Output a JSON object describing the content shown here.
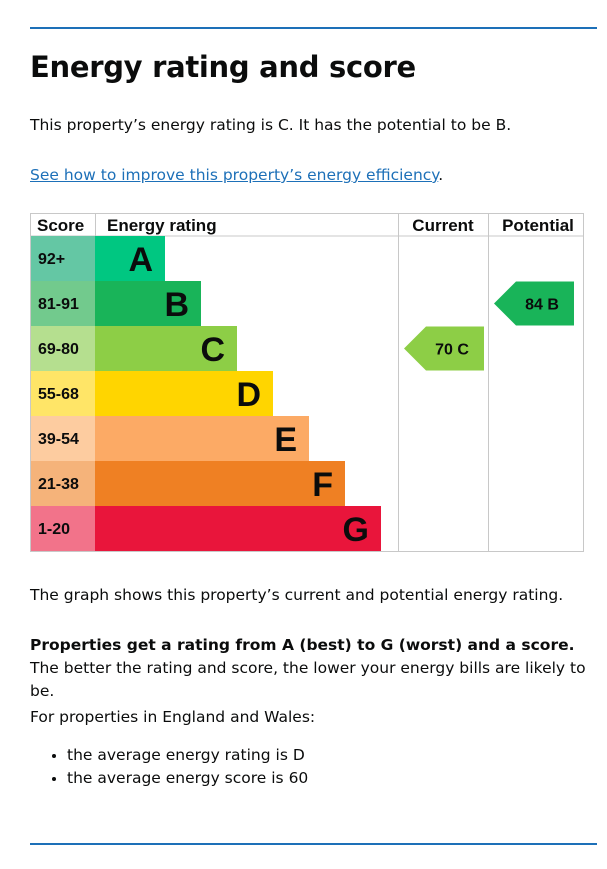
{
  "title": "Energy rating and score",
  "summary": "This property’s energy rating is C. It has the potential to be B.",
  "link": {
    "text": "See how to improve this property’s energy efficiency",
    "suffix": "."
  },
  "chart_data": {
    "type": "bar",
    "headers": {
      "score": "Score",
      "rating": "Energy rating",
      "current": "Current",
      "potential": "Potential"
    },
    "bands": [
      {
        "letter": "A",
        "range": "92+",
        "color": "#00c781",
        "score_color": "#64c7a4"
      },
      {
        "letter": "B",
        "range": "81-91",
        "color": "#19b459",
        "score_color": "#72ca8d"
      },
      {
        "letter": "C",
        "range": "69-80",
        "color": "#8dce46",
        "score_color": "#b5df8f"
      },
      {
        "letter": "D",
        "range": "55-68",
        "color": "#ffd500",
        "score_color": "#ffe567"
      },
      {
        "letter": "E",
        "range": "39-54",
        "color": "#fcaa65",
        "score_color": "#fdcca0"
      },
      {
        "letter": "F",
        "range": "21-38",
        "color": "#ef8023",
        "score_color": "#f5b37a"
      },
      {
        "letter": "G",
        "range": "1-20",
        "color": "#e9153b",
        "score_color": "#f2738a"
      }
    ],
    "current": {
      "score": 70,
      "letter": "C",
      "label": "70  C"
    },
    "potential": {
      "score": 84,
      "letter": "B",
      "label": "84  B"
    }
  },
  "caption": "The graph shows this property’s current and potential energy rating.",
  "explain_bold": "Properties get a rating from A (best) to G (worst) and a score.",
  "explain_rest": " The better the rating and score, the lower your energy bills are likely to be.",
  "average_intro": "For properties in England and Wales:",
  "averages": [
    "the average energy rating is D",
    "the average energy score is 60"
  ]
}
